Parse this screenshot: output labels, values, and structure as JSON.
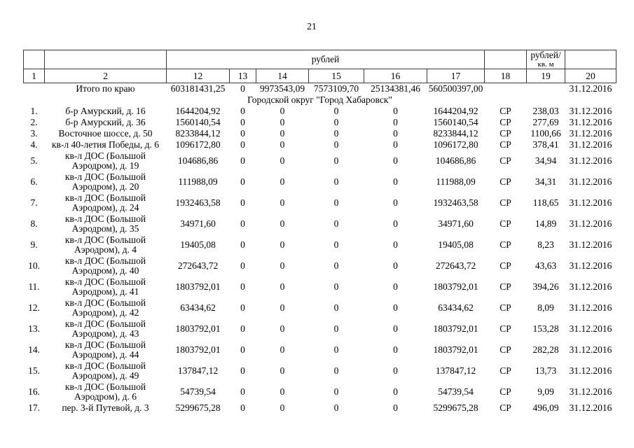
{
  "page_number": "21",
  "table": {
    "unit_header": {
      "rub": "рублей",
      "rub_per_sqm_line1": "рублей/",
      "rub_per_sqm_line2": "кв. м"
    },
    "column_numbers": [
      "1",
      "2",
      "12",
      "13",
      "14",
      "15",
      "16",
      "17",
      "18",
      "19",
      "20"
    ],
    "totals_row": {
      "label": "Итого по краю",
      "values": [
        "603181431,25",
        "0",
        "9973543,09",
        "7573109,70",
        "25134381,46",
        "560500397,00",
        "",
        "",
        "31.12.2016"
      ]
    },
    "section_title": "Городской округ \"Город Хабаровск\"",
    "rows": [
      {
        "num": "1.",
        "address_lines": [
          "б-р Амурский, д. 16"
        ],
        "values": [
          "1644204,92",
          "0",
          "0",
          "0",
          "0",
          "1644204,92",
          "СР",
          "238,03",
          "31.12.2016"
        ]
      },
      {
        "num": "2.",
        "address_lines": [
          "б-р Амурский, д. 36"
        ],
        "values": [
          "1560140,54",
          "0",
          "0",
          "0",
          "0",
          "1560140,54",
          "СР",
          "277,69",
          "31.12.2016"
        ]
      },
      {
        "num": "3.",
        "address_lines": [
          "Восточное шоссе, д. 50"
        ],
        "values": [
          "8233844,12",
          "0",
          "0",
          "0",
          "0",
          "8233844,12",
          "СР",
          "1100,66",
          "31.12.2016"
        ]
      },
      {
        "num": "4.",
        "address_lines": [
          "кв-л 40-летия Победы, д. 6"
        ],
        "values": [
          "1096172,80",
          "0",
          "0",
          "0",
          "0",
          "1096172,80",
          "СР",
          "378,41",
          "31.12.2016"
        ]
      },
      {
        "num": "5.",
        "address_lines": [
          "кв-л ДОС (Большой",
          "Аэродром), д. 19"
        ],
        "values": [
          "104686,86",
          "0",
          "0",
          "0",
          "0",
          "104686,86",
          "СР",
          "34,94",
          "31.12.2016"
        ]
      },
      {
        "num": "6.",
        "address_lines": [
          "кв-л ДОС (Большой",
          "Аэродром), д. 20"
        ],
        "values": [
          "111988,09",
          "0",
          "0",
          "0",
          "0",
          "111988,09",
          "СР",
          "34,31",
          "31.12.2016"
        ]
      },
      {
        "num": "7.",
        "address_lines": [
          "кв-л ДОС (Большой",
          "Аэродром), д. 24"
        ],
        "values": [
          "1932463,58",
          "0",
          "0",
          "0",
          "0",
          "1932463,58",
          "СР",
          "118,65",
          "31.12.2016"
        ]
      },
      {
        "num": "8.",
        "address_lines": [
          "кв-л ДОС (Большой",
          "Аэродром), д. 35"
        ],
        "values": [
          "34971,60",
          "0",
          "0",
          "0",
          "0",
          "34971,60",
          "СР",
          "14,89",
          "31.12.2016"
        ]
      },
      {
        "num": "9.",
        "address_lines": [
          "кв-л ДОС (Большой",
          "Аэродром), д. 4"
        ],
        "values": [
          "19405,08",
          "0",
          "0",
          "0",
          "0",
          "19405,08",
          "СР",
          "8,23",
          "31.12.2016"
        ]
      },
      {
        "num": "10.",
        "address_lines": [
          "кв-л ДОС (Большой",
          "Аэродром), д. 40"
        ],
        "values": [
          "272643,72",
          "0",
          "0",
          "0",
          "0",
          "272643,72",
          "СР",
          "43,63",
          "31.12.2016"
        ]
      },
      {
        "num": "11.",
        "address_lines": [
          "кв-л ДОС (Большой",
          "Аэродром), д. 41"
        ],
        "values": [
          "1803792,01",
          "0",
          "0",
          "0",
          "0",
          "1803792,01",
          "СР",
          "394,26",
          "31.12.2016"
        ]
      },
      {
        "num": "12.",
        "address_lines": [
          "кв-л ДОС (Большой",
          "Аэродром), д. 42"
        ],
        "values": [
          "63434,62",
          "0",
          "0",
          "0",
          "0",
          "63434,62",
          "СР",
          "8,09",
          "31.12.2016"
        ]
      },
      {
        "num": "13.",
        "address_lines": [
          "кв-л ДОС (Большой",
          "Аэродром), д. 43"
        ],
        "values": [
          "1803792,01",
          "0",
          "0",
          "0",
          "0",
          "1803792,01",
          "СР",
          "153,28",
          "31.12.2016"
        ]
      },
      {
        "num": "14.",
        "address_lines": [
          "кв-л ДОС (Большой",
          "Аэродром), д. 44"
        ],
        "values": [
          "1803792,01",
          "0",
          "0",
          "0",
          "0",
          "1803792,01",
          "СР",
          "282,28",
          "31.12.2016"
        ]
      },
      {
        "num": "15.",
        "address_lines": [
          "кв-л ДОС (Большой",
          "Аэродром), д. 49"
        ],
        "values": [
          "137847,12",
          "0",
          "0",
          "0",
          "0",
          "137847,12",
          "СР",
          "13,73",
          "31.12.2016"
        ]
      },
      {
        "num": "16.",
        "address_lines": [
          "кв-л ДОС (Большой",
          "Аэродром), д. 6"
        ],
        "values": [
          "54739,54",
          "0",
          "0",
          "0",
          "0",
          "54739,54",
          "СР",
          "9,09",
          "31.12.2016"
        ]
      },
      {
        "num": "17.",
        "address_lines": [
          "пер. 3-й Путевой, д. 3"
        ],
        "values": [
          "5299675,28",
          "0",
          "0",
          "0",
          "0",
          "5299675,28",
          "СР",
          "496,09",
          "31.12.2016"
        ]
      }
    ]
  }
}
